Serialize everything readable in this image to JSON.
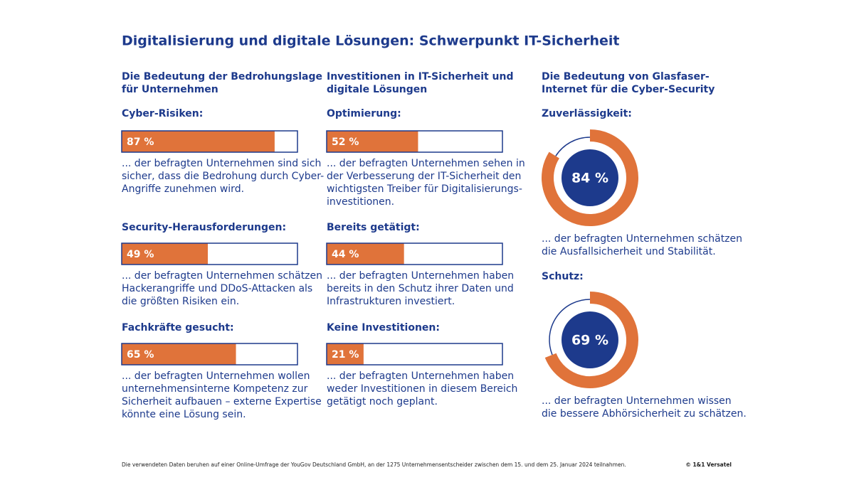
{
  "title": "Digitalisierung und digitale Lösungen: Schwerpunkt IT-Sicherheit",
  "columns": [
    {
      "kind": "bar",
      "heading": [
        "Die Bedeutung der Bedrohungslage",
        "für Unternehmen"
      ],
      "items": [
        {
          "label": "Cyber-Risiken:",
          "value": 87,
          "value_label": "87 %",
          "lines": [
            "... der befragten Unternehmen sind sich",
            "sicher, dass die Bedrohung durch Cyber-",
            "Angriffe zunehmen wird."
          ]
        },
        {
          "label": "Security-Herausforderungen:",
          "value": 49,
          "value_label": "49 %",
          "lines": [
            "... der befragten Unternehmen schätzen",
            "Hackerangriffe und DDoS-Attacken als",
            "die größten Risiken ein."
          ]
        },
        {
          "label": "Fachkräfte gesucht:",
          "value": 65,
          "value_label": "65 %",
          "lines": [
            "... der befragten Unternehmen wollen",
            "unternehmensinterne Kompetenz zur",
            "Sicherheit aufbauen – externe Expertise",
            "könnte eine Lösung sein."
          ]
        }
      ]
    },
    {
      "kind": "bar",
      "heading": [
        "Investitionen in IT-Sicherheit und",
        "digitale Lösungen"
      ],
      "items": [
        {
          "label": "Optimierung:",
          "value": 52,
          "value_label": "52 %",
          "lines": [
            "... der befragten Unternehmen sehen in",
            "der Verbesserung der IT-Sicherheit den",
            "wichtigsten Treiber für Digitalisierungs-",
            "investitionen."
          ]
        },
        {
          "label": "Bereits getätigt:",
          "value": 44,
          "value_label": "44 %",
          "lines": [
            "... der befragten Unternehmen haben",
            "bereits in den Schutz ihrer Daten und",
            "Infrastrukturen investiert."
          ]
        },
        {
          "label": "Keine Investitionen:",
          "value": 21,
          "value_label": "21 %",
          "lines": [
            "... der befragten Unternehmen haben",
            "weder Investitionen in diesem Bereich",
            "getätigt noch geplant."
          ]
        }
      ]
    },
    {
      "kind": "donut",
      "heading": [
        "Die Bedeutung von Glasfaser-",
        "Internet für die Cyber-Security"
      ],
      "items": [
        {
          "label": "Zuverlässigkeit:",
          "value": 84,
          "value_label": "84 %",
          "lines": [
            "...  der befragten Unternehmen schätzen",
            "die  Ausfallsicherheit und Stabilität."
          ]
        },
        {
          "label": "Schutz:",
          "value": 69,
          "value_label": "69 %",
          "lines": [
            "... der befragten Unternehmen wissen",
            "die bessere Abhörsicherheit zu schätzen."
          ]
        }
      ]
    }
  ],
  "footer": "Die verwendeten Daten beruhen auf einer Online-Umfrage der YouGov Deutschland GmbH, an der 1275 Unternehmensentscheider zwischen dem 15. und dem 25. Januar 2024 teilnahmen.",
  "copyright": "© 1&1 Versatel"
}
